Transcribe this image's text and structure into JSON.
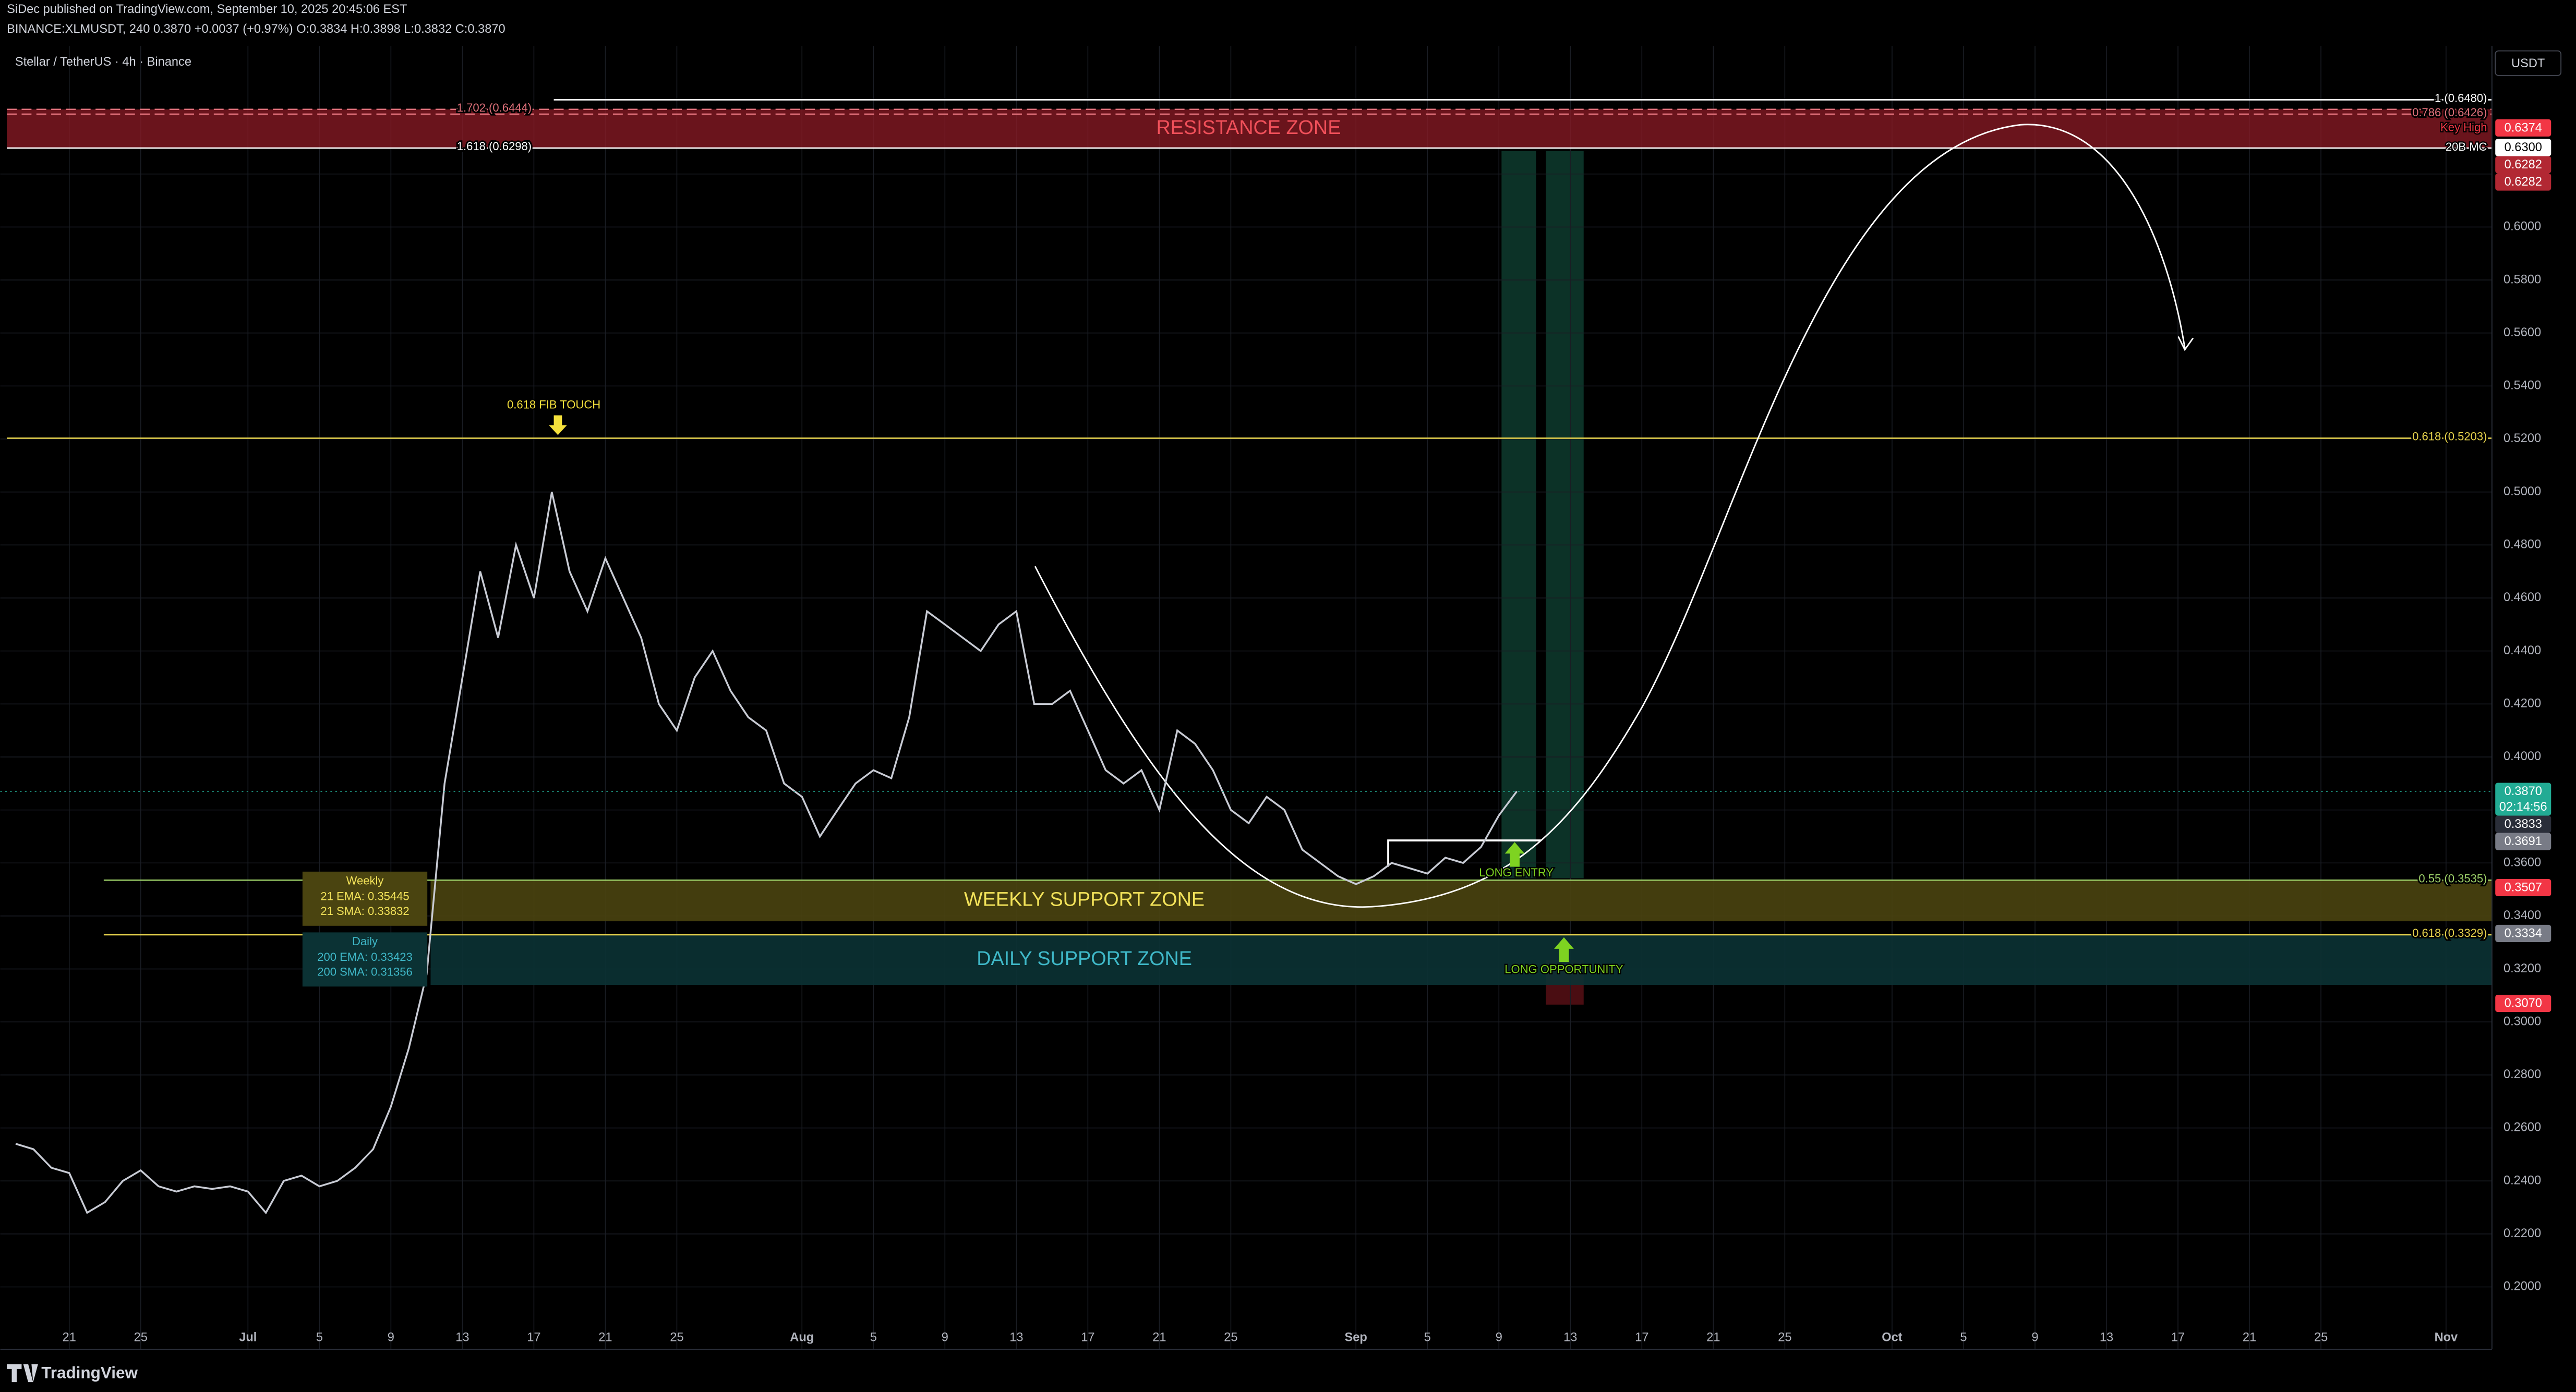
{
  "header": {
    "publisher": "SiDec published on TradingView.com, September 10, 2025 20:45:06 EST",
    "ticker_line": "BINANCE:XLMUSDT, 240 0.3870 +0.0037 (+0.97%) O:0.3834 H:0.3898 L:0.3832 C:0.3870",
    "legend": "Stellar / TetherUS · 4h · Binance",
    "currency": "USDT",
    "brand": "TradingView"
  },
  "chart_data": {
    "type": "line",
    "color": "#c8cbd4",
    "x": [
      "06-18",
      "06-19",
      "06-20",
      "06-21",
      "06-22",
      "06-23",
      "06-24",
      "06-25",
      "06-26",
      "06-27",
      "06-28",
      "06-29",
      "06-30",
      "07-01",
      "07-02",
      "07-03",
      "07-04",
      "07-05",
      "07-06",
      "07-07",
      "07-08",
      "07-09",
      "07-10",
      "07-11",
      "07-12",
      "07-13",
      "07-14",
      "07-15",
      "07-16",
      "07-17",
      "07-18",
      "07-19",
      "07-20",
      "07-21",
      "07-22",
      "07-23",
      "07-24",
      "07-25",
      "07-26",
      "07-27",
      "07-28",
      "07-29",
      "07-30",
      "07-31",
      "08-01",
      "08-02",
      "08-03",
      "08-04",
      "08-05",
      "08-06",
      "08-07",
      "08-08",
      "08-09",
      "08-10",
      "08-11",
      "08-12",
      "08-13",
      "08-14",
      "08-15",
      "08-16",
      "08-17",
      "08-18",
      "08-19",
      "08-20",
      "08-21",
      "08-22",
      "08-23",
      "08-24",
      "08-25",
      "08-26",
      "08-27",
      "08-28",
      "08-29",
      "08-30",
      "08-31",
      "09-01",
      "09-02",
      "09-03",
      "09-04",
      "09-05",
      "09-06",
      "09-07",
      "09-08",
      "09-09",
      "09-10"
    ],
    "series": [
      {
        "name": "XLMUSDT",
        "values": [
          0.254,
          0.252,
          0.245,
          0.243,
          0.228,
          0.232,
          0.24,
          0.244,
          0.238,
          0.236,
          0.238,
          0.237,
          0.238,
          0.236,
          0.228,
          0.24,
          0.242,
          0.238,
          0.24,
          0.245,
          0.252,
          0.268,
          0.29,
          0.318,
          0.39,
          0.43,
          0.47,
          0.445,
          0.48,
          0.46,
          0.5,
          0.47,
          0.455,
          0.475,
          0.46,
          0.445,
          0.42,
          0.41,
          0.43,
          0.44,
          0.425,
          0.415,
          0.41,
          0.39,
          0.385,
          0.37,
          0.38,
          0.39,
          0.395,
          0.392,
          0.415,
          0.455,
          0.45,
          0.445,
          0.44,
          0.45,
          0.455,
          0.42,
          0.42,
          0.425,
          0.41,
          0.395,
          0.39,
          0.395,
          0.38,
          0.41,
          0.405,
          0.395,
          0.38,
          0.375,
          0.385,
          0.38,
          0.365,
          0.36,
          0.355,
          0.352,
          0.355,
          0.36,
          0.358,
          0.356,
          0.362,
          0.36,
          0.366,
          0.378,
          0.387
        ]
      }
    ],
    "ylim": [
      0.185,
      0.665
    ],
    "yticks": [
      {
        "value": 0.2,
        "label": "0.2000"
      },
      {
        "value": 0.22,
        "label": "0.2200"
      },
      {
        "value": 0.24,
        "label": "0.2400"
      },
      {
        "value": 0.26,
        "label": "0.2600"
      },
      {
        "value": 0.28,
        "label": "0.2800"
      },
      {
        "value": 0.3,
        "label": "0.3000"
      },
      {
        "value": 0.32,
        "label": "0.3200"
      },
      {
        "value": 0.34,
        "label": "0.3400"
      },
      {
        "value": 0.36,
        "label": "0.3600"
      },
      {
        "value": 0.38,
        "label": "0.3800"
      },
      {
        "value": 0.4,
        "label": "0.4000"
      },
      {
        "value": 0.42,
        "label": "0.4200"
      },
      {
        "value": 0.44,
        "label": "0.4400"
      },
      {
        "value": 0.46,
        "label": "0.4600"
      },
      {
        "value": 0.48,
        "label": "0.4800"
      },
      {
        "value": 0.5,
        "label": "0.5000"
      },
      {
        "value": 0.52,
        "label": "0.5200"
      },
      {
        "value": 0.54,
        "label": "0.5400"
      },
      {
        "value": 0.56,
        "label": "0.5600"
      },
      {
        "value": 0.58,
        "label": "0.5800"
      },
      {
        "value": 0.6,
        "label": "0.6000"
      },
      {
        "value": 0.62,
        "label": "0.6200"
      }
    ],
    "xticks": [
      {
        "value": "06-21",
        "label": "21"
      },
      {
        "value": "06-25",
        "label": "25"
      },
      {
        "value": "07-01",
        "label": "Jul"
      },
      {
        "value": "07-05",
        "label": "5"
      },
      {
        "value": "07-09",
        "label": "9"
      },
      {
        "value": "07-13",
        "label": "13"
      },
      {
        "value": "07-17",
        "label": "17"
      },
      {
        "value": "07-21",
        "label": "21"
      },
      {
        "value": "07-25",
        "label": "25"
      },
      {
        "value": "08-01",
        "label": "Aug"
      },
      {
        "value": "08-05",
        "label": "5"
      },
      {
        "value": "08-09",
        "label": "9"
      },
      {
        "value": "08-13",
        "label": "13"
      },
      {
        "value": "08-17",
        "label": "17"
      },
      {
        "value": "08-21",
        "label": "21"
      },
      {
        "value": "08-25",
        "label": "25"
      },
      {
        "value": "09-01",
        "label": "Sep"
      },
      {
        "value": "09-05",
        "label": "5"
      },
      {
        "value": "09-09",
        "label": "9"
      },
      {
        "value": "09-13",
        "label": "13"
      },
      {
        "value": "09-17",
        "label": "17"
      },
      {
        "value": "09-21",
        "label": "21"
      },
      {
        "value": "09-25",
        "label": "25"
      },
      {
        "value": "10-01",
        "label": "Oct"
      },
      {
        "value": "10-05",
        "label": "5"
      },
      {
        "value": "10-09",
        "label": "9"
      },
      {
        "value": "10-13",
        "label": "13"
      },
      {
        "value": "10-17",
        "label": "17"
      },
      {
        "value": "10-21",
        "label": "21"
      },
      {
        "value": "10-25",
        "label": "25"
      },
      {
        "value": "11-01",
        "label": "Nov"
      }
    ],
    "zones": [
      {
        "label": "RESISTANCE ZONE",
        "top": 0.6444,
        "bottom": 0.6298,
        "color": "#8e1b25",
        "text_color": "#f0505a"
      },
      {
        "label": "WEEKLY SUPPORT ZONE",
        "top": 0.3535,
        "bottom": 0.338,
        "color": "#4a4410",
        "text_color": "#f3e35a"
      },
      {
        "label": "DAILY SUPPORT ZONE",
        "top": 0.3329,
        "bottom": 0.314,
        "color": "#0b3234",
        "text_color": "#3fb8c8"
      }
    ],
    "levels": [
      {
        "label": "1 (0.6480)",
        "value": 0.648,
        "color": "#ffffff",
        "side": "right"
      },
      {
        "label": "1.702 (0.6444)",
        "value": 0.6444,
        "color": "#e0707a",
        "side": "left"
      },
      {
        "label": "0.786 (0.6426)",
        "value": 0.6426,
        "color": "#e0707a",
        "side": "right"
      },
      {
        "label": "1.618 (0.6298)",
        "value": 0.6298,
        "color": "#ffffff",
        "side": "left"
      },
      {
        "label": "0.618 (0.5203)",
        "value": 0.5203,
        "color": "#e8d44d",
        "side": "right"
      },
      {
        "label": "0.55 (0.3535)",
        "value": 0.3535,
        "color": "#9fd36a",
        "side": "right"
      },
      {
        "label": "0.618 (0.3329)",
        "value": 0.3329,
        "color": "#e8d44d",
        "side": "right"
      }
    ],
    "price_tags": [
      {
        "value": 0.6374,
        "label": "0.6374",
        "color": "#f23645"
      },
      {
        "value": 0.63,
        "label": "0.6300",
        "color": "#ffffff"
      },
      {
        "value": 0.6282,
        "label": "0.6282",
        "color": "#b22833"
      },
      {
        "value": 0.6282,
        "label": "0.6282",
        "color": "#b22833"
      },
      {
        "value": 0.387,
        "label": "0.3870",
        "color": "#22ab94",
        "countdown": "02:14:56"
      },
      {
        "value": 0.3833,
        "label": "0.3833",
        "color": "#2a2e39"
      },
      {
        "value": 0.3691,
        "label": "0.3691",
        "color": "#787b86"
      },
      {
        "value": 0.3507,
        "label": "0.3507",
        "color": "#f23645"
      },
      {
        "value": 0.3334,
        "label": "0.3334",
        "color": "#787b86"
      },
      {
        "value": 0.307,
        "label": "0.3070",
        "color": "#f23645"
      }
    ],
    "annotations": [
      "0.618 FIB TOUCH",
      "Key High",
      "20B MC",
      "LONG ENTRY",
      "LONG OPPORTUNITY"
    ],
    "indicators": [
      {
        "title": "Weekly",
        "lines": [
          "21 EMA: 0.35445",
          "21 SMA: 0.33832"
        ]
      },
      {
        "title": "Daily",
        "lines": [
          "200 EMA: 0.33423",
          "200 SMA: 0.31356"
        ]
      }
    ]
  }
}
